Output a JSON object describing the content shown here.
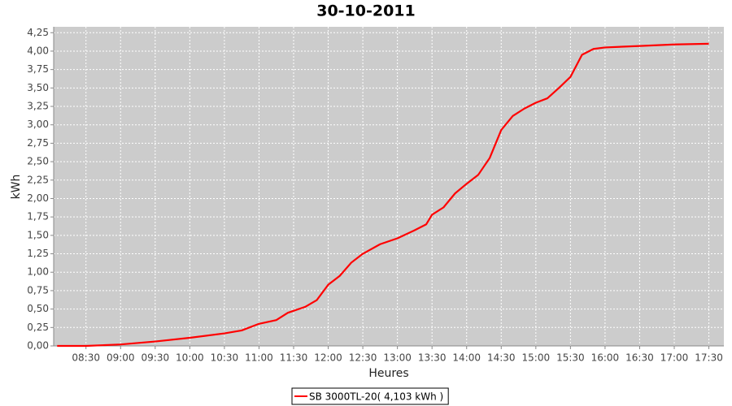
{
  "chart_data": {
    "type": "line",
    "title": "30-10-2011",
    "x_label": "Heures",
    "y_label": "kWh",
    "x": [
      "08:05",
      "08:30",
      "09:00",
      "09:30",
      "10:00",
      "10:30",
      "10:45",
      "11:00",
      "11:15",
      "11:25",
      "11:40",
      "11:50",
      "12:00",
      "12:10",
      "12:20",
      "12:30",
      "12:45",
      "13:00",
      "13:15",
      "13:25",
      "13:30",
      "13:40",
      "13:50",
      "14:00",
      "14:10",
      "14:20",
      "14:30",
      "14:40",
      "14:50",
      "15:00",
      "15:10",
      "15:20",
      "15:30",
      "15:40",
      "15:50",
      "16:00",
      "16:30",
      "17:00",
      "17:30"
    ],
    "series": [
      {
        "name": "SB 3000TL-20( 4,103 kWh )",
        "color": "#ff0000",
        "values": [
          0.0,
          0.0,
          0.02,
          0.06,
          0.11,
          0.17,
          0.21,
          0.3,
          0.35,
          0.45,
          0.53,
          0.62,
          0.83,
          0.95,
          1.13,
          1.25,
          1.38,
          1.46,
          1.57,
          1.65,
          1.78,
          1.88,
          2.07,
          2.2,
          2.32,
          2.55,
          2.93,
          3.12,
          3.22,
          3.3,
          3.36,
          3.5,
          3.65,
          3.95,
          4.03,
          4.05,
          4.07,
          4.09,
          4.1
        ]
      }
    ],
    "xlim": [
      "08:02",
      "17:43"
    ],
    "xticks": [
      "08:30",
      "09:00",
      "09:30",
      "10:00",
      "10:30",
      "11:00",
      "11:30",
      "12:00",
      "12:30",
      "13:00",
      "13:30",
      "14:00",
      "14:30",
      "15:00",
      "15:30",
      "16:00",
      "16:30",
      "17:00",
      "17:30"
    ],
    "ylim": [
      0,
      4.33
    ],
    "yticks": [
      {
        "value": 0,
        "label": "0,00"
      },
      {
        "value": 0.25,
        "label": "0,25"
      },
      {
        "value": 0.5,
        "label": "0,50"
      },
      {
        "value": 0.75,
        "label": "0,75"
      },
      {
        "value": 1,
        "label": "1,00"
      },
      {
        "value": 1.25,
        "label": "1,25"
      },
      {
        "value": 1.5,
        "label": "1,50"
      },
      {
        "value": 1.75,
        "label": "1,75"
      },
      {
        "value": 2,
        "label": "2,00"
      },
      {
        "value": 2.25,
        "label": "2,25"
      },
      {
        "value": 2.5,
        "label": "2,50"
      },
      {
        "value": 2.75,
        "label": "2,75"
      },
      {
        "value": 3,
        "label": "3,00"
      },
      {
        "value": 3.25,
        "label": "3,25"
      },
      {
        "value": 3.5,
        "label": "3,50"
      },
      {
        "value": 3.75,
        "label": "3,75"
      },
      {
        "value": 4,
        "label": "4,00"
      },
      {
        "value": 4.25,
        "label": "4,25"
      }
    ],
    "grid": true,
    "legend": "bottom"
  }
}
